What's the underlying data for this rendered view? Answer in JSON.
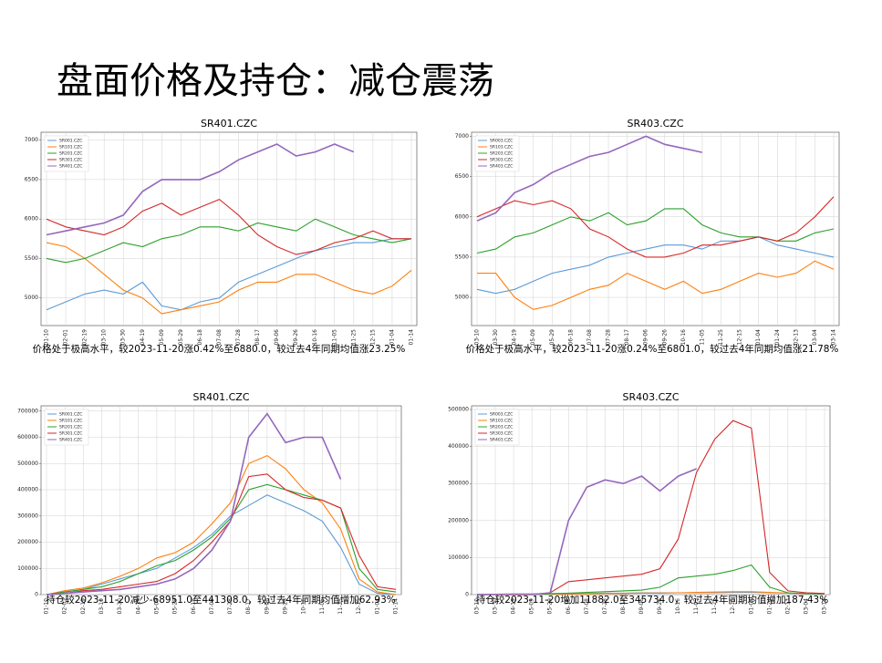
{
  "header": {
    "title": "盘面价格及持仓：减仓震荡"
  },
  "chart_data": [
    {
      "type": "line",
      "title": "SR401.CZC",
      "legend": "upper left",
      "grid": true,
      "annotation": "价格处于极高水平，较2023-11-20涨0.42%至6880.0，较过去4年同期均值涨23.25%",
      "categories": [
        "01-10",
        "02-01",
        "02-19",
        "03-10",
        "03-30",
        "04-19",
        "05-09",
        "05-29",
        "06-18",
        "07-08",
        "07-28",
        "08-17",
        "09-06",
        "09-26",
        "10-16",
        "11-05",
        "11-25",
        "12-15",
        "01-04",
        "01-14"
      ],
      "ylim": [
        4650,
        7100
      ],
      "yticks": [
        5000,
        5500,
        6000,
        6500,
        7000
      ],
      "series": [
        {
          "name": "SR001.CZC",
          "color": "#5b9bd5",
          "values": [
            4850,
            4950,
            5050,
            5100,
            5050,
            5200,
            4900,
            4850,
            4950,
            5000,
            5200,
            5300,
            5400,
            5500,
            5600,
            5650,
            5700,
            5700,
            5750,
            5750
          ]
        },
        {
          "name": "SR101.CZC",
          "color": "#ff7f0e",
          "values": [
            5700,
            5650,
            5500,
            5300,
            5100,
            5000,
            4800,
            4850,
            4900,
            4950,
            5100,
            5200,
            5200,
            5300,
            5300,
            5200,
            5100,
            5050,
            5150,
            5350
          ]
        },
        {
          "name": "SR201.CZC",
          "color": "#2ca02c",
          "values": [
            5500,
            5450,
            5500,
            5600,
            5700,
            5650,
            5750,
            5800,
            5900,
            5900,
            5850,
            5950,
            5900,
            5850,
            6000,
            5900,
            5800,
            5750,
            5700,
            5750
          ]
        },
        {
          "name": "SR301.CZC",
          "color": "#d62728",
          "values": [
            6000,
            5900,
            5850,
            5800,
            5900,
            6100,
            6200,
            6050,
            6150,
            6250,
            6050,
            5800,
            5650,
            5550,
            5600,
            5700,
            5750,
            5850,
            5750,
            5750
          ]
        },
        {
          "name": "SR401.CZC",
          "color": "#9467bd",
          "values": [
            5800,
            5850,
            5900,
            5950,
            6050,
            6350,
            6500,
            6500,
            6500,
            6600,
            6750,
            6850,
            6950,
            6800,
            6850,
            6950,
            6850,
            null,
            null,
            null
          ]
        }
      ]
    },
    {
      "type": "line",
      "title": "SR403.CZC",
      "legend": "upper left",
      "grid": true,
      "annotation": "价格处于极高水平，较2023-11-20涨0.24%至6801.0，较过去4年同期均值涨21.78%",
      "categories": [
        "03-10",
        "03-30",
        "04-19",
        "05-09",
        "05-29",
        "06-18",
        "07-08",
        "07-28",
        "08-17",
        "09-06",
        "09-26",
        "10-16",
        "11-05",
        "11-25",
        "12-15",
        "01-04",
        "01-24",
        "02-13",
        "03-04",
        "03-14"
      ],
      "ylim": [
        4650,
        7050
      ],
      "yticks": [
        5000,
        5500,
        6000,
        6500,
        7000
      ],
      "series": [
        {
          "name": "SR003.CZC",
          "color": "#5b9bd5",
          "values": [
            5100,
            5050,
            5100,
            5200,
            5300,
            5350,
            5400,
            5500,
            5550,
            5600,
            5650,
            5650,
            5600,
            5700,
            5700,
            5750,
            5650,
            5600,
            5550,
            5500
          ]
        },
        {
          "name": "SR103.CZC",
          "color": "#ff7f0e",
          "values": [
            5300,
            5300,
            5000,
            4850,
            4900,
            5000,
            5100,
            5150,
            5300,
            5200,
            5100,
            5200,
            5050,
            5100,
            5200,
            5300,
            5250,
            5300,
            5450,
            5350
          ]
        },
        {
          "name": "SR203.CZC",
          "color": "#2ca02c",
          "values": [
            5550,
            5600,
            5750,
            5800,
            5900,
            6000,
            5950,
            6050,
            5900,
            5950,
            6100,
            6100,
            5900,
            5800,
            5750,
            5750,
            5700,
            5700,
            5800,
            5850
          ]
        },
        {
          "name": "SR303.CZC",
          "color": "#d62728",
          "values": [
            6000,
            6100,
            6200,
            6150,
            6200,
            6100,
            5850,
            5750,
            5600,
            5500,
            5500,
            5550,
            5650,
            5650,
            5700,
            5750,
            5700,
            5800,
            6000,
            6250
          ]
        },
        {
          "name": "SR403.CZC",
          "color": "#9467bd",
          "values": [
            5950,
            6050,
            6300,
            6400,
            6550,
            6650,
            6750,
            6800,
            6900,
            7000,
            6900,
            6850,
            6800,
            null,
            null,
            null,
            null,
            null,
            null,
            null
          ]
        }
      ]
    },
    {
      "type": "line",
      "title": "SR401.CZC",
      "legend": "upper left",
      "grid": true,
      "annotation": "持仓较2023-11-20减少-68951.0至441308.0，较过去4年同期均值增加62.93%",
      "categories": [
        "01-10",
        "02-01",
        "02-19",
        "03-10",
        "03-30",
        "04-19",
        "05-09",
        "05-29",
        "06-18",
        "07-08",
        "07-28",
        "08-17",
        "09-06",
        "09-26",
        "10-16",
        "11-05",
        "11-25",
        "12-15",
        "01-04",
        "01-14"
      ],
      "ylim": [
        0,
        720000
      ],
      "yticks": [
        0,
        100000,
        200000,
        300000,
        400000,
        500000,
        600000,
        700000
      ],
      "series": [
        {
          "name": "SR001.CZC",
          "color": "#5b9bd5",
          "values": [
            0,
            10000,
            20000,
            40000,
            60000,
            80000,
            100000,
            140000,
            180000,
            230000,
            300000,
            340000,
            380000,
            350000,
            320000,
            280000,
            180000,
            40000,
            5000,
            0
          ]
        },
        {
          "name": "SR101.CZC",
          "color": "#ff7f0e",
          "values": [
            0,
            15000,
            25000,
            45000,
            70000,
            100000,
            140000,
            160000,
            200000,
            270000,
            350000,
            500000,
            530000,
            480000,
            400000,
            350000,
            250000,
            60000,
            10000,
            0
          ]
        },
        {
          "name": "SR201.CZC",
          "color": "#2ca02c",
          "values": [
            0,
            10000,
            20000,
            30000,
            50000,
            80000,
            110000,
            130000,
            170000,
            220000,
            290000,
            400000,
            420000,
            400000,
            380000,
            360000,
            330000,
            100000,
            20000,
            10000
          ]
        },
        {
          "name": "SR301.CZC",
          "color": "#d62728",
          "values": [
            0,
            5000,
            15000,
            20000,
            30000,
            40000,
            50000,
            80000,
            130000,
            200000,
            280000,
            450000,
            460000,
            400000,
            370000,
            360000,
            330000,
            150000,
            30000,
            20000
          ]
        },
        {
          "name": "SR401.CZC",
          "color": "#9467bd",
          "values": [
            0,
            5000,
            10000,
            15000,
            20000,
            30000,
            40000,
            60000,
            100000,
            170000,
            280000,
            600000,
            690000,
            580000,
            600000,
            600000,
            440000,
            null,
            null,
            null
          ]
        }
      ]
    },
    {
      "type": "line",
      "title": "SR403.CZC",
      "legend": "upper left",
      "grid": true,
      "annotation": "持仓较2023-11-20增加11882.0至345734.0，较过去4年同期均值增加187.43%",
      "categories": [
        "03-10",
        "03-30",
        "04-19",
        "05-09",
        "05-29",
        "06-18",
        "07-08",
        "07-28",
        "08-17",
        "09-06",
        "09-26",
        "10-16",
        "11-05",
        "11-25",
        "12-15",
        "01-04",
        "01-24",
        "02-13",
        "03-04",
        "03-14"
      ],
      "ylim": [
        0,
        510000
      ],
      "yticks": [
        0,
        100000,
        200000,
        300000,
        400000,
        500000
      ],
      "series": [
        {
          "name": "SR003.CZC",
          "color": "#5b9bd5",
          "values": [
            1000,
            1000,
            2000,
            2000,
            3000,
            3000,
            3000,
            4000,
            4000,
            5000,
            5000,
            5000,
            5000,
            5000,
            6000,
            6000,
            5000,
            4000,
            3000,
            2000
          ]
        },
        {
          "name": "SR103.CZC",
          "color": "#ff7f0e",
          "values": [
            500,
            500,
            1000,
            1000,
            1000,
            2000,
            2000,
            3000,
            3000,
            4000,
            4000,
            5000,
            6000,
            7000,
            8000,
            8000,
            6000,
            4000,
            3000,
            2000
          ]
        },
        {
          "name": "SR203.CZC",
          "color": "#2ca02c",
          "values": [
            0,
            0,
            0,
            0,
            2000,
            4000,
            6000,
            8000,
            10000,
            12000,
            20000,
            45000,
            50000,
            55000,
            65000,
            80000,
            20000,
            5000,
            3000,
            2000
          ]
        },
        {
          "name": "SR303.CZC",
          "color": "#d62728",
          "values": [
            0,
            0,
            0,
            0,
            5000,
            35000,
            40000,
            45000,
            50000,
            55000,
            70000,
            150000,
            330000,
            420000,
            470000,
            450000,
            60000,
            10000,
            5000,
            3000
          ]
        },
        {
          "name": "SR403.CZC",
          "color": "#9467bd",
          "values": [
            0,
            0,
            0,
            0,
            5000,
            200000,
            290000,
            310000,
            300000,
            320000,
            280000,
            320000,
            340000,
            null,
            null,
            null,
            null,
            null,
            null,
            null
          ]
        }
      ]
    }
  ]
}
